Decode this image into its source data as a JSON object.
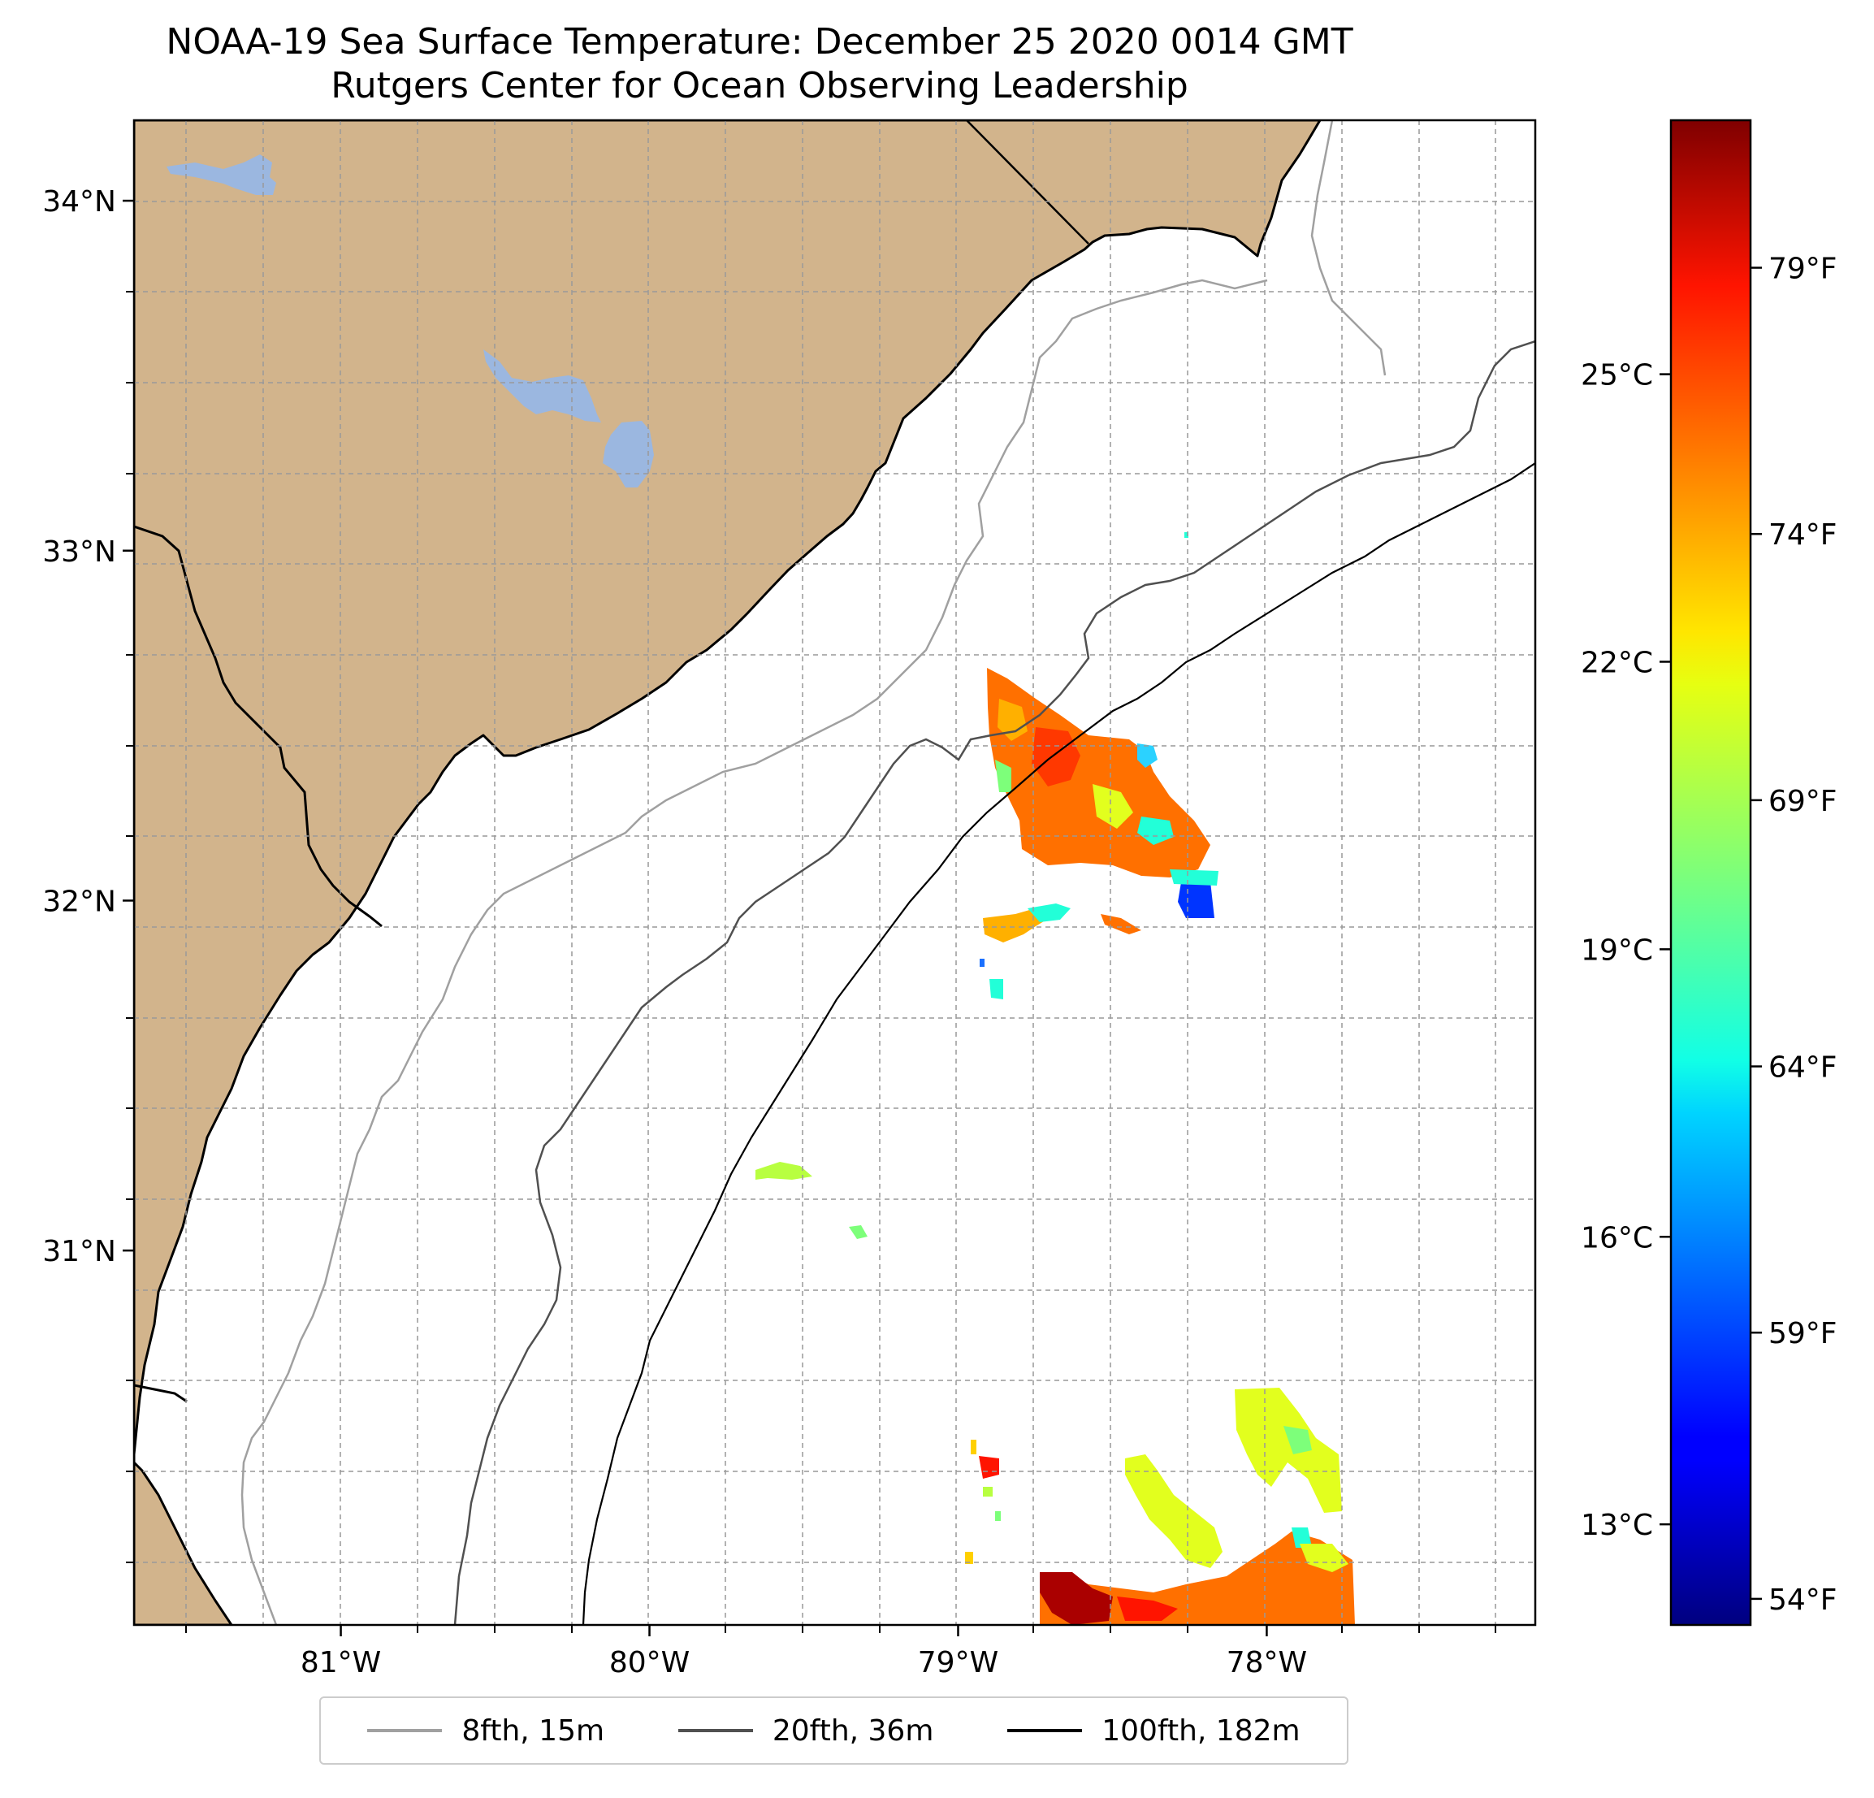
{
  "title": "NOAA-19 Sea Surface Temperature: December 25 2020 0014 GMT",
  "subtitle": "Rutgers Center for Ocean Observing Leadership",
  "map": {
    "lon_range": [
      -81.67,
      -77.13
    ],
    "lat_range": [
      29.93,
      34.23
    ],
    "lon_ticks": [
      {
        "value": -81,
        "label": "81°W"
      },
      {
        "value": -80,
        "label": "80°W"
      },
      {
        "value": -79,
        "label": "79°W"
      },
      {
        "value": -78,
        "label": "78°W"
      }
    ],
    "lat_ticks": [
      {
        "value": 34,
        "label": "34°N"
      },
      {
        "value": 33,
        "label": "33°N"
      },
      {
        "value": 32,
        "label": "32°N"
      },
      {
        "value": 31,
        "label": "31°N"
      }
    ],
    "gridlines": true,
    "colors": {
      "land": "#d2b48c",
      "water_body": "#9bb7e0",
      "ocean": "#ffffff"
    }
  },
  "colorbar": {
    "colormap": "jet",
    "celsius_ticks": [
      {
        "value": 25,
        "label": "25°C"
      },
      {
        "value": 22,
        "label": "22°C"
      },
      {
        "value": 19,
        "label": "19°C"
      },
      {
        "value": 16,
        "label": "16°C"
      },
      {
        "value": 13,
        "label": "13°C"
      }
    ],
    "fahrenheit_ticks": [
      {
        "value": 79,
        "label": "79°F"
      },
      {
        "value": 74,
        "label": "74°F"
      },
      {
        "value": 69,
        "label": "69°F"
      },
      {
        "value": 64,
        "label": "64°F"
      },
      {
        "value": 59,
        "label": "59°F"
      },
      {
        "value": 54,
        "label": "54°F"
      }
    ]
  },
  "legend": {
    "placement": "bottom-center",
    "items": [
      {
        "label": "8fth, 15m",
        "color": "#a0a0a0"
      },
      {
        "label": "20fth, 36m",
        "color": "#505050"
      },
      {
        "label": "100fth, 182m",
        "color": "#000000"
      }
    ]
  }
}
